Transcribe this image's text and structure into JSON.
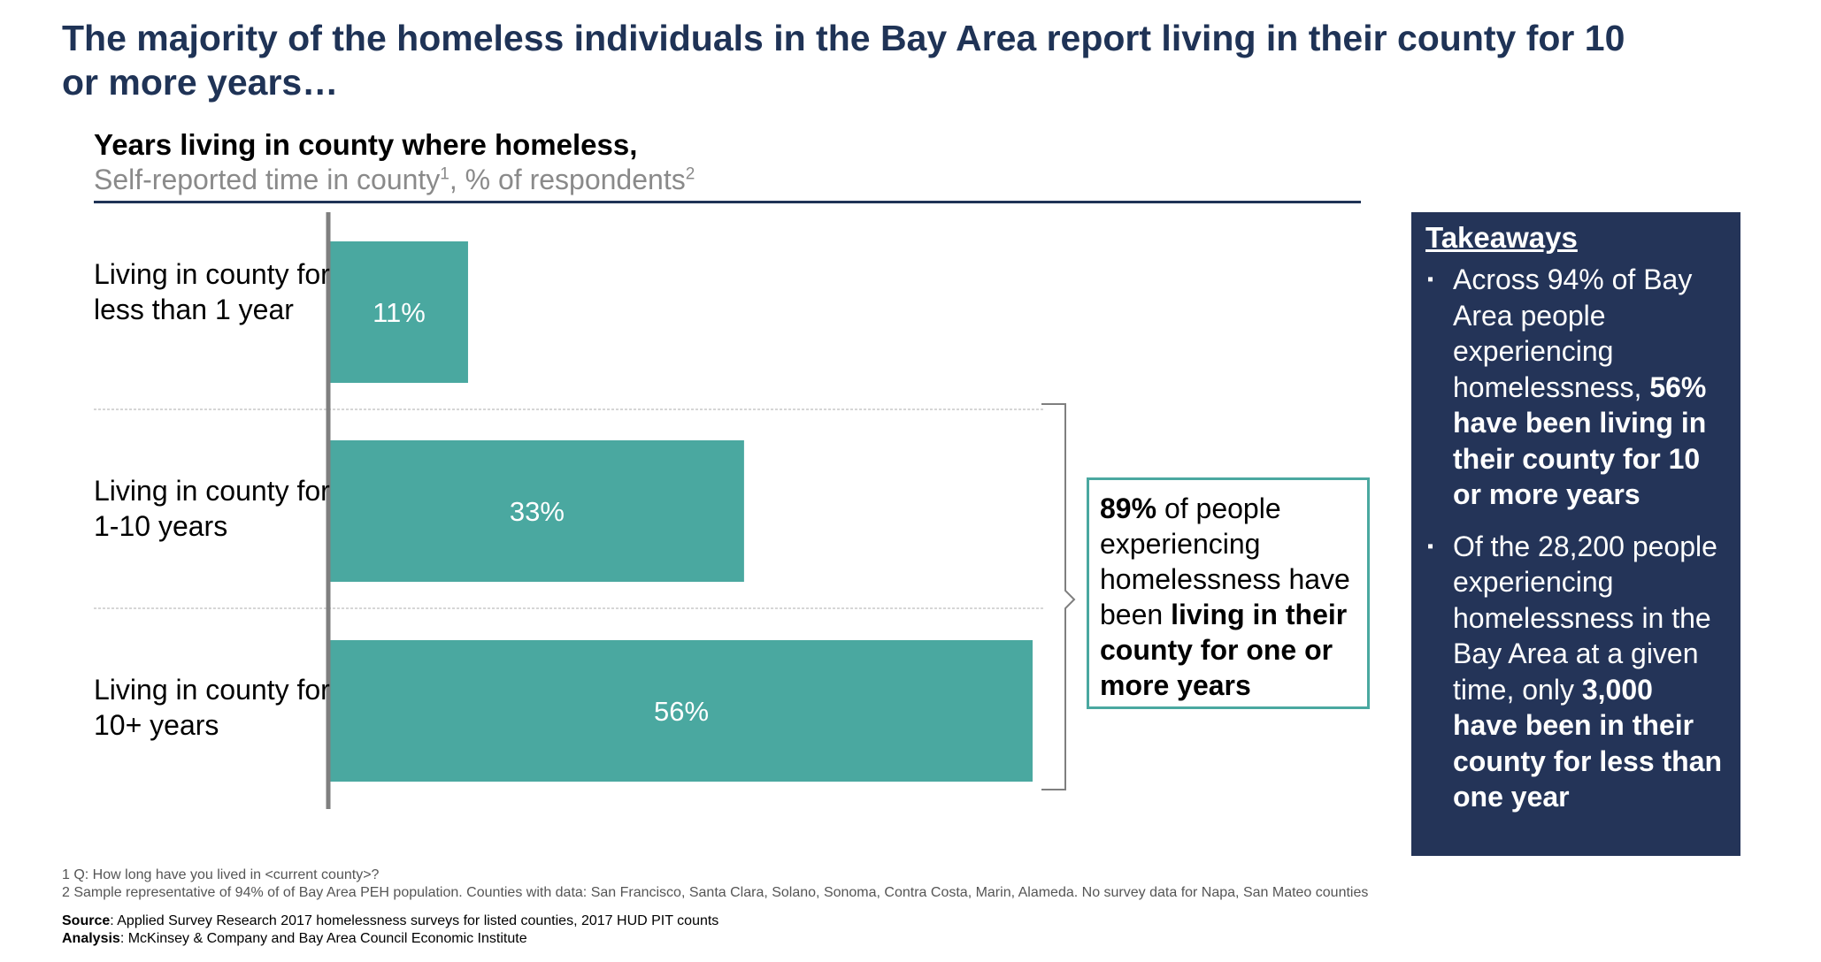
{
  "headline": "The majority of the homeless individuals in the Bay Area report living in their county for 10 or more years…",
  "chart_data": {
    "type": "bar",
    "orientation": "horizontal",
    "title": "Years living in county where homeless,",
    "subtitle": "Self-reported time in county",
    "subtitle_sup1": "1",
    "subtitle_mid": ", % of respondents",
    "subtitle_sup2": "2",
    "categories": [
      "Living in county for less than 1 year",
      "Living in county for 1-10 years",
      "Living in county for 10+ years"
    ],
    "values": [
      11,
      33,
      56
    ],
    "value_labels": [
      "11%",
      "33%",
      "56%"
    ],
    "xlim": [
      0,
      56
    ],
    "bar_color": "#4aa8a0"
  },
  "callout": {
    "bold_1": "89%",
    "text_1": " of people experiencing homelessness have been ",
    "bold_2": "living in their county for one or more years"
  },
  "takeaways": {
    "title": "Takeaways",
    "bullet_glyph": "▪",
    "items": [
      {
        "text": "Across 94% of Bay Area people experiencing homelessness, ",
        "bold": "56% have been living in their county for 10 or more years"
      },
      {
        "text": "Of the 28,200 people experiencing homelessness in the Bay Area at a given time, only ",
        "bold": "3,000 have been in their county for less than one year"
      }
    ]
  },
  "footnotes": [
    "1  Q: How long have you lived in <current county>?",
    "2 Sample representative of 94% of of Bay Area PEH population. Counties with data: San Francisco, Santa Clara, Solano, Sonoma, Contra Costa, Marin, Alameda. No survey data for Napa, San Mateo counties"
  ],
  "source": {
    "label": "Source",
    "text": ": Applied Survey Research 2017 homelessness surveys for listed counties, 2017 HUD PIT counts"
  },
  "analysis": {
    "label": "Analysis",
    "text": ": McKinsey & Company and Bay Area Council Economic Institute"
  },
  "colors": {
    "navy": "#1f3356",
    "panel": "#243458",
    "teal": "#4aa8a0"
  }
}
